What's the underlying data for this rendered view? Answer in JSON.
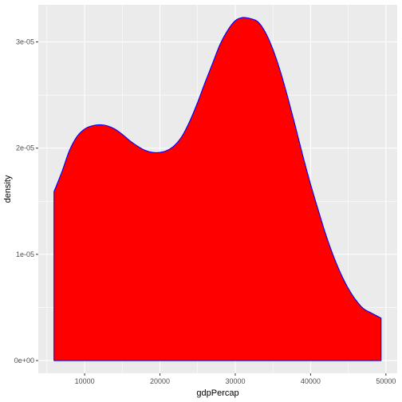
{
  "chart_data": {
    "type": "area",
    "xlabel": "gdpPercap",
    "ylabel": "density",
    "xlim": [
      3850,
      51500
    ],
    "ylim": [
      -1.2e-06,
      3.35e-05
    ],
    "x_ticks": [
      10000,
      20000,
      30000,
      40000,
      50000
    ],
    "x_tick_labels": [
      "10000",
      "20000",
      "30000",
      "40000",
      "50000"
    ],
    "y_ticks": [
      0,
      1e-05,
      2e-05,
      3e-05
    ],
    "y_tick_labels": [
      "0e+00",
      "1e-05",
      "2e-05",
      "3e-05"
    ],
    "grid": true,
    "panel_background": "#ebebeb",
    "grid_color": "#ffffff",
    "fill_color": "#ff0000",
    "line_color": "#0000ff",
    "series": [
      {
        "x": [
          5937,
          7000,
          8000,
          9000,
          10000,
          11000,
          12000,
          13000,
          14000,
          15000,
          16000,
          17000,
          18000,
          19000,
          20000,
          21000,
          22000,
          23000,
          24000,
          25000,
          26000,
          27000,
          28000,
          29000,
          30000,
          31000,
          32000,
          33000,
          34000,
          35000,
          36000,
          37000,
          38000,
          39000,
          40000,
          41000,
          42000,
          43000,
          44000,
          45000,
          46000,
          47000,
          48000,
          49357
        ],
        "y": [
          1.59e-05,
          1.78e-05,
          1.98e-05,
          2.11e-05,
          2.18e-05,
          2.21e-05,
          2.22e-05,
          2.21e-05,
          2.18e-05,
          2.13e-05,
          2.07e-05,
          2.02e-05,
          1.98e-05,
          1.96e-05,
          1.96e-05,
          1.98e-05,
          2.03e-05,
          2.12e-05,
          2.26e-05,
          2.43e-05,
          2.62e-05,
          2.8e-05,
          2.98e-05,
          3.11e-05,
          3.2e-05,
          3.23e-05,
          3.22e-05,
          3.19e-05,
          3.09e-05,
          2.93e-05,
          2.72e-05,
          2.47e-05,
          2.2e-05,
          1.92e-05,
          1.66e-05,
          1.42e-05,
          1.19e-05,
          9.9e-06,
          8.2e-06,
          6.8e-06,
          5.7e-06,
          4.9e-06,
          4.5e-06,
          4e-06
        ]
      }
    ]
  }
}
